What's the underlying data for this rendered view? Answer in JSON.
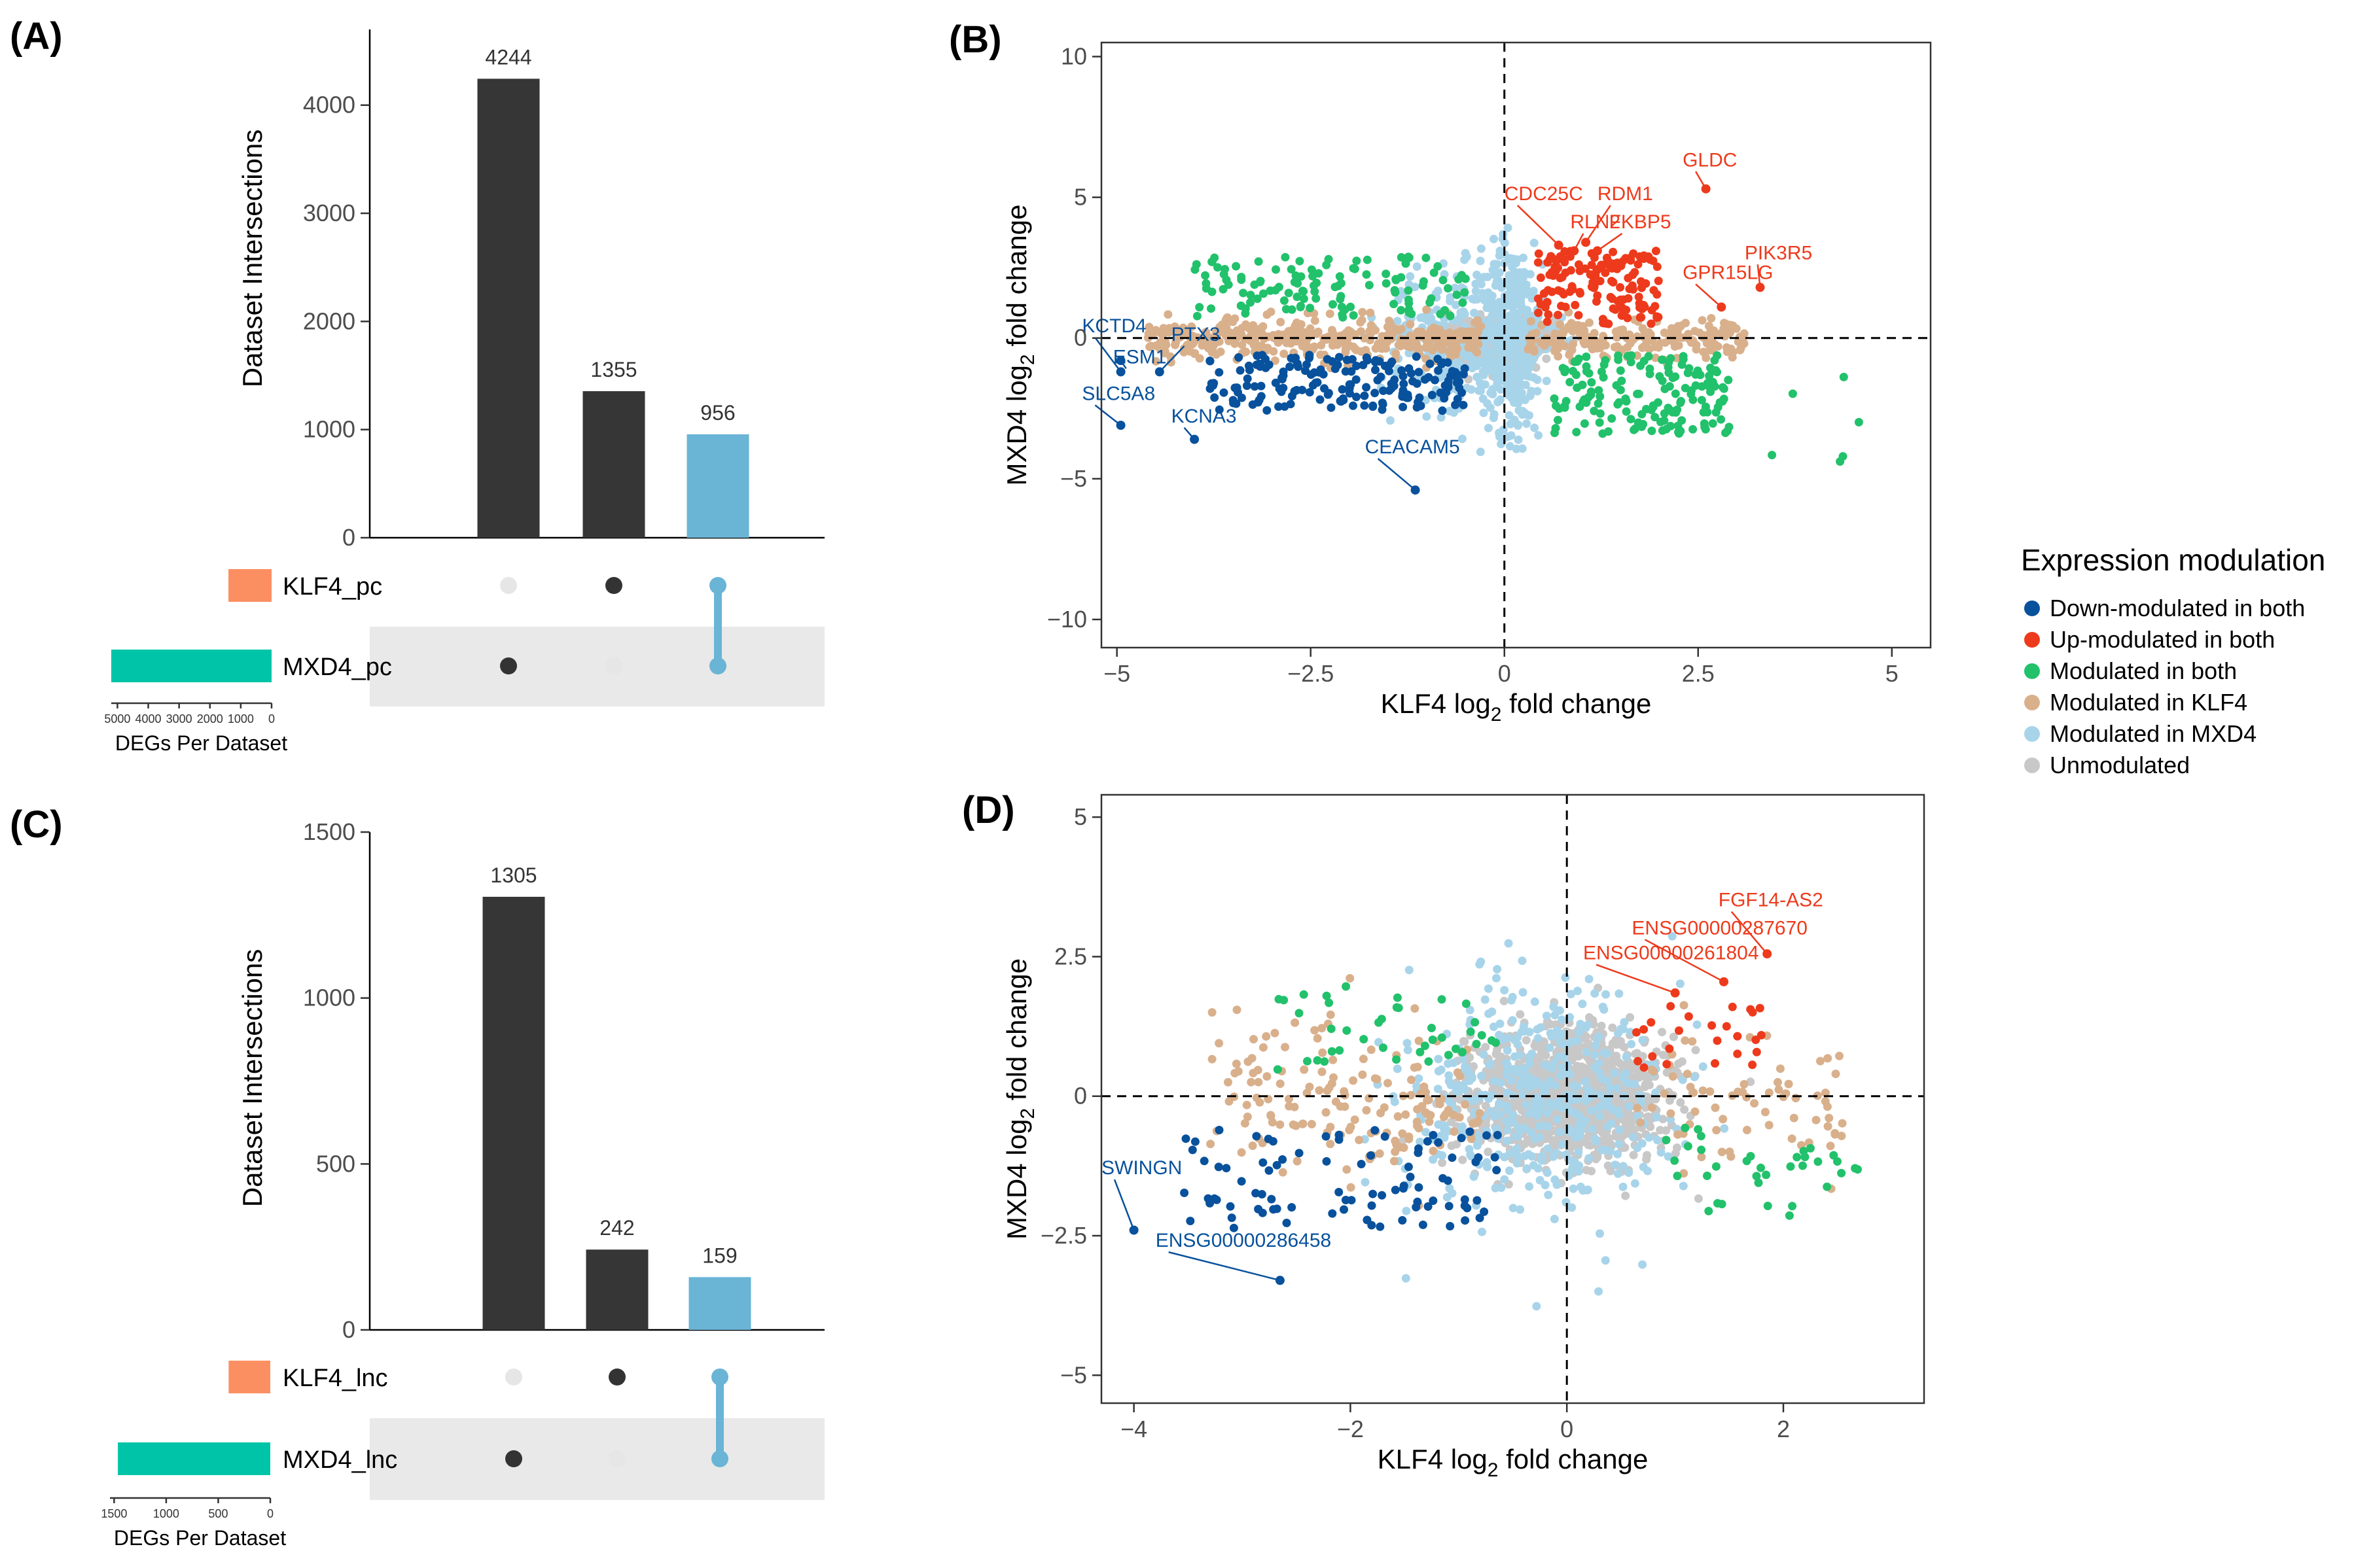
{
  "panels": {
    "A": "(A)",
    "B": "(B)",
    "C": "(C)",
    "D": "(D)"
  },
  "colors": {
    "bar_dark": "#363636",
    "bar_blue": "#6ab4d6",
    "klf4_set": "#fc8f61",
    "mxd4_set": "#00c4a7",
    "dot_off": "#e6e6e6",
    "dot_on": "#333333",
    "down": "#08519c",
    "up": "#ee3a1c",
    "both": "#22c16b",
    "klf4": "#d9b08c",
    "mxd4": "#a8d4ea",
    "unmod": "#c8c8c8"
  },
  "upset": [
    {
      "panel": "A",
      "ylabel": "Dataset Intersections",
      "ymax": 4700,
      "yticks": [
        0,
        1000,
        2000,
        3000,
        4000
      ],
      "bars": [
        {
          "value": 4244,
          "label": "4244",
          "sets": [
            1
          ],
          "color": "dark"
        },
        {
          "value": 1355,
          "label": "1355",
          "sets": [
            0
          ],
          "color": "dark"
        },
        {
          "value": 956,
          "label": "956",
          "sets": [
            0,
            1
          ],
          "color": "blue"
        }
      ],
      "set_names": [
        "KLF4_pc",
        "MXD4_pc"
      ],
      "set_sizes": [
        1400,
        5200
      ],
      "size_max": 5200,
      "size_ticks": [
        5000,
        4000,
        3000,
        2000,
        1000,
        0
      ],
      "size_tick_labels": [
        "5000",
        "4000",
        "3000",
        "2000",
        "1000",
        "0"
      ],
      "size_label": "DEGs Per Dataset"
    },
    {
      "panel": "C",
      "ylabel": "Dataset Intersections",
      "ymax": 1500,
      "yticks": [
        0,
        500,
        1000,
        1500
      ],
      "bars": [
        {
          "value": 1305,
          "label": "1305",
          "sets": [
            1
          ],
          "color": "dark"
        },
        {
          "value": 242,
          "label": "242",
          "sets": [
            0
          ],
          "color": "dark"
        },
        {
          "value": 159,
          "label": "159",
          "sets": [
            0,
            1
          ],
          "color": "blue"
        }
      ],
      "set_names": [
        "KLF4_lnc",
        "MXD4_lnc"
      ],
      "set_sizes": [
        400,
        1464
      ],
      "size_max": 1540,
      "size_ticks": [
        1500,
        1000,
        500,
        0
      ],
      "size_tick_labels": [
        "1500",
        "1000",
        "500",
        "0"
      ],
      "size_label": "DEGs Per Dataset"
    }
  ],
  "chart_data": [
    {
      "panel": "B",
      "type": "scatter",
      "xlabel_pre": "KLF4 log",
      "xlabel_sub": "2",
      "xlabel_post": " fold change",
      "ylabel_pre": "MXD4 log",
      "ylabel_sub": "2",
      "ylabel_post": " fold change",
      "xlim": [
        -5.2,
        5.5
      ],
      "ylim": [
        -11,
        10.5
      ],
      "xticks": [
        -5,
        -2.5,
        0,
        2.5,
        5
      ],
      "xtick_labels": [
        "−5",
        "−2.5",
        "0",
        "2.5",
        "5"
      ],
      "yticks": [
        -10,
        -5,
        0,
        5,
        10
      ],
      "ytick_labels": [
        "−10",
        "−5",
        "0",
        "5",
        "10"
      ],
      "labels": [
        {
          "text": "GLDC",
          "cls": "up",
          "x": 2.6,
          "y": 5.3,
          "tx": 2.3,
          "ty": 6.1
        },
        {
          "text": "CDC25C",
          "cls": "up",
          "x": 0.7,
          "y": 3.3,
          "tx": 0.0,
          "ty": 4.9
        },
        {
          "text": "RDM1",
          "cls": "up",
          "x": 1.05,
          "y": 3.4,
          "tx": 1.2,
          "ty": 4.9
        },
        {
          "text": "RLN2",
          "cls": "up",
          "x": 0.9,
          "y": 3.1,
          "tx": 0.85,
          "ty": 3.9
        },
        {
          "text": "FKBP5",
          "cls": "up",
          "x": 1.2,
          "y": 3.1,
          "tx": 1.35,
          "ty": 3.9
        },
        {
          "text": "PIK3R5",
          "cls": "up",
          "x": 3.3,
          "y": 1.8,
          "tx": 3.1,
          "ty": 2.8
        },
        {
          "text": "GPR15LG",
          "cls": "up",
          "x": 2.8,
          "y": 1.1,
          "tx": 2.3,
          "ty": 2.1
        },
        {
          "text": "KCTD4",
          "cls": "down",
          "x": -4.95,
          "y": -1.2,
          "tx": -5.45,
          "ty": 0.2
        },
        {
          "text": "PTX3",
          "cls": "down",
          "x": -4.45,
          "y": -1.2,
          "tx": -4.3,
          "ty": -0.1
        },
        {
          "text": "ESM1",
          "cls": "down",
          "x": -4.95,
          "y": -0.8,
          "tx": -5.05,
          "ty": -0.9
        },
        {
          "text": "SLC5A8",
          "cls": "down",
          "x": -4.95,
          "y": -3.1,
          "tx": -5.45,
          "ty": -2.2
        },
        {
          "text": "KCNA3",
          "cls": "down",
          "x": -4.0,
          "y": -3.6,
          "tx": -4.3,
          "ty": -3.0
        },
        {
          "text": "CEACAM5",
          "cls": "down",
          "x": -1.15,
          "y": -5.4,
          "tx": -1.8,
          "ty": -4.1
        }
      ]
    },
    {
      "panel": "D",
      "type": "scatter",
      "xlabel_pre": "KLF4 log",
      "xlabel_sub": "2",
      "xlabel_post": " fold change",
      "ylabel_pre": "MXD4 log",
      "ylabel_sub": "2",
      "ylabel_post": " fold change",
      "xlim": [
        -4.3,
        3.3
      ],
      "ylim": [
        -5.5,
        5.4
      ],
      "xticks": [
        -4,
        -2,
        0,
        2
      ],
      "xtick_labels": [
        "−4",
        "−2",
        "0",
        "2"
      ],
      "yticks": [
        -5,
        -2.5,
        0,
        2.5,
        5
      ],
      "ytick_labels": [
        "−5",
        "−2.5",
        "0",
        "2.5",
        "5"
      ],
      "labels": [
        {
          "text": "FGF14-AS2",
          "cls": "up",
          "x": 1.85,
          "y": 2.55,
          "tx": 1.4,
          "ty": 3.4
        },
        {
          "text": "ENSG00000287670",
          "cls": "up",
          "x": 1.45,
          "y": 2.05,
          "tx": 0.6,
          "ty": 2.9
        },
        {
          "text": "ENSG00000261804",
          "cls": "up",
          "x": 1.0,
          "y": 1.85,
          "tx": 0.15,
          "ty": 2.45
        },
        {
          "text": "SWINGN",
          "cls": "down",
          "x": -4.0,
          "y": -2.4,
          "tx": -4.3,
          "ty": -1.4
        },
        {
          "text": "ENSG00000286458",
          "cls": "down",
          "x": -2.65,
          "y": -3.3,
          "tx": -3.8,
          "ty": -2.7
        }
      ]
    }
  ],
  "legend": {
    "title": "Expression modulation",
    "items": [
      {
        "key": "down",
        "label": "Down-modulated in both"
      },
      {
        "key": "up",
        "label": "Up-modulated in both"
      },
      {
        "key": "both",
        "label": "Modulated in both"
      },
      {
        "key": "klf4",
        "label": "Modulated in KLF4"
      },
      {
        "key": "mxd4",
        "label": "Modulated in MXD4"
      },
      {
        "key": "unmod",
        "label": "Unmodulated"
      }
    ]
  }
}
